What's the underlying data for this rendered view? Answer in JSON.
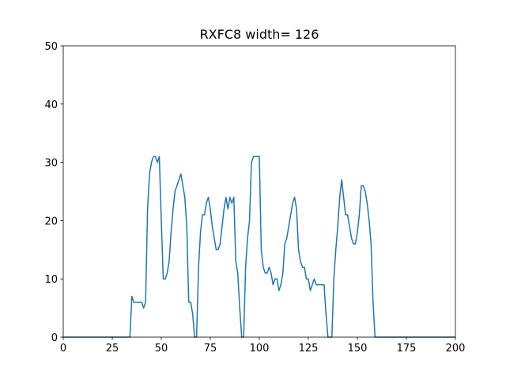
{
  "chart_data": {
    "type": "line",
    "title": "RXFC8 width= 126",
    "x": [
      0,
      34,
      35,
      36,
      37,
      38,
      39,
      40,
      41,
      42,
      43,
      44,
      45,
      46,
      47,
      48,
      49,
      50,
      51,
      52,
      53,
      54,
      55,
      56,
      57,
      58,
      59,
      60,
      61,
      62,
      63,
      64,
      65,
      66,
      67,
      68,
      69,
      70,
      71,
      72,
      73,
      74,
      75,
      76,
      77,
      78,
      79,
      80,
      81,
      82,
      83,
      84,
      85,
      86,
      87,
      88,
      89,
      90,
      91,
      92,
      93,
      94,
      95,
      96,
      97,
      98,
      99,
      100,
      101,
      102,
      103,
      104,
      105,
      106,
      107,
      108,
      109,
      110,
      111,
      112,
      113,
      114,
      115,
      116,
      117,
      118,
      119,
      120,
      121,
      122,
      123,
      124,
      125,
      126,
      127,
      128,
      129,
      130,
      131,
      132,
      133,
      134,
      135,
      136,
      137,
      138,
      139,
      140,
      141,
      142,
      143,
      144,
      145,
      146,
      147,
      148,
      149,
      150,
      151,
      152,
      153,
      154,
      155,
      156,
      157,
      158,
      159,
      160,
      200
    ],
    "series": [
      {
        "color": "#1f77b4",
        "values": [
          0,
          0,
          7,
          6,
          6,
          6,
          6,
          6,
          5,
          6,
          22,
          28,
          30,
          31,
          31,
          30,
          31,
          20,
          10,
          10,
          11,
          13,
          18,
          22,
          25,
          26,
          27,
          28,
          26,
          24,
          19,
          6,
          6,
          4,
          0,
          0,
          12,
          18,
          21,
          21,
          23,
          24,
          22,
          19,
          17,
          15,
          15,
          16,
          19,
          22,
          24,
          22,
          24,
          23,
          24,
          13,
          11,
          5,
          0,
          0,
          12,
          17,
          20,
          30,
          31,
          31,
          31,
          31,
          15,
          12,
          11,
          11,
          12,
          11,
          9,
          10,
          10,
          8,
          9,
          11,
          16,
          17,
          19,
          21,
          23,
          24,
          22,
          15,
          13,
          12,
          12,
          10,
          10,
          8,
          9,
          10,
          9,
          9,
          9,
          9,
          9,
          4,
          0,
          0,
          0,
          10,
          15,
          19,
          24,
          27,
          24,
          21,
          21,
          19,
          17,
          16,
          16,
          18,
          21,
          26,
          26,
          25,
          23,
          20,
          16,
          6,
          0,
          0,
          0
        ]
      }
    ],
    "xlim": [
      0,
      200
    ],
    "ylim": [
      0,
      50
    ],
    "xticks": [
      0,
      25,
      50,
      75,
      100,
      125,
      150,
      175,
      200
    ],
    "yticks": [
      0,
      10,
      20,
      30,
      40,
      50
    ]
  }
}
